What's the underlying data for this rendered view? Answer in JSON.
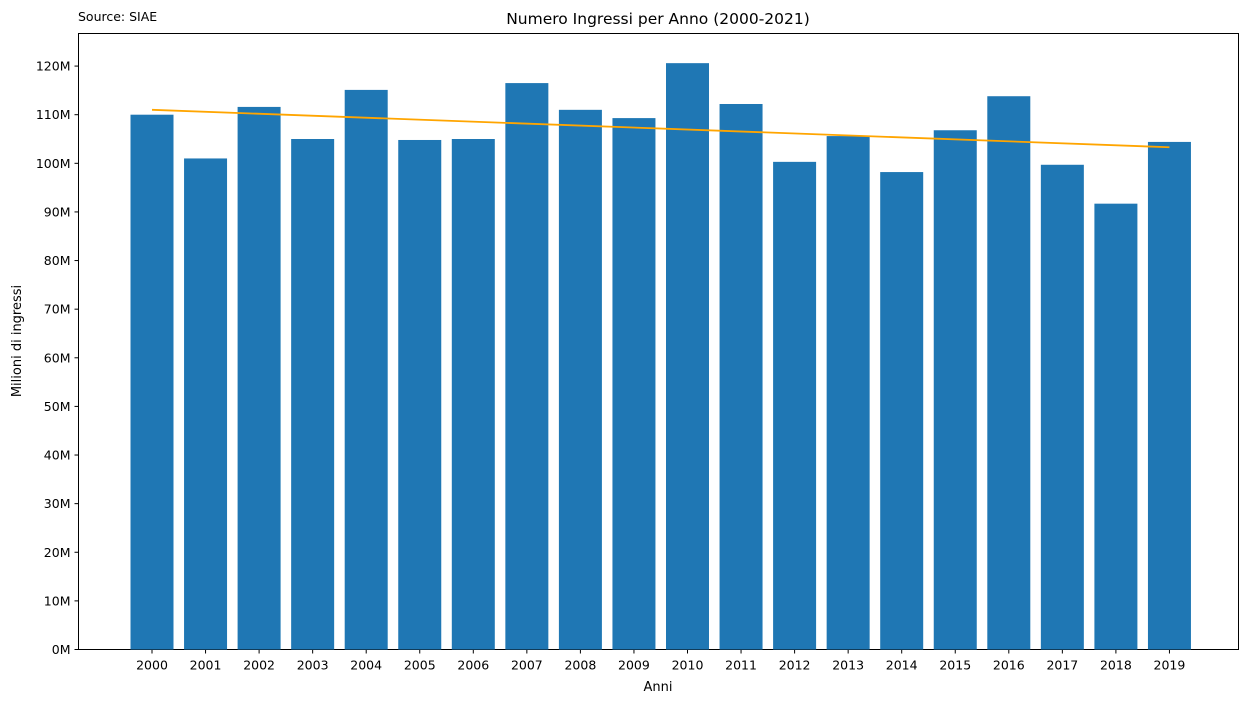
{
  "source": "Source: SIAE",
  "chart_data": {
    "type": "bar",
    "title": "Numero Ingressi per Anno (2000-2021)",
    "xlabel": "Anni",
    "ylabel": "Milioni di ingressi",
    "categories": [
      "2000",
      "2001",
      "2002",
      "2003",
      "2004",
      "2005",
      "2006",
      "2007",
      "2008",
      "2009",
      "2010",
      "2011",
      "2012",
      "2013",
      "2014",
      "2015",
      "2016",
      "2017",
      "2018",
      "2019"
    ],
    "values": [
      110.0,
      101.0,
      111.6,
      105.0,
      115.1,
      104.8,
      105.0,
      116.5,
      111.0,
      109.3,
      120.6,
      112.2,
      100.3,
      105.6,
      98.2,
      106.8,
      113.8,
      99.7,
      91.7,
      104.4
    ],
    "y_tick_values": [
      0,
      10,
      20,
      30,
      40,
      50,
      60,
      70,
      80,
      90,
      100,
      110,
      120
    ],
    "y_tick_labels": [
      "0M",
      "10M",
      "20M",
      "30M",
      "40M",
      "50M",
      "60M",
      "70M",
      "80M",
      "90M",
      "100M",
      "110M",
      "120M"
    ],
    "ylim": [
      0,
      126.7
    ],
    "trend_line": {
      "start": 111.0,
      "end": 103.3,
      "color": "#ffa500"
    },
    "bar_color": "#1f77b4",
    "grid": false,
    "legend": "none"
  }
}
